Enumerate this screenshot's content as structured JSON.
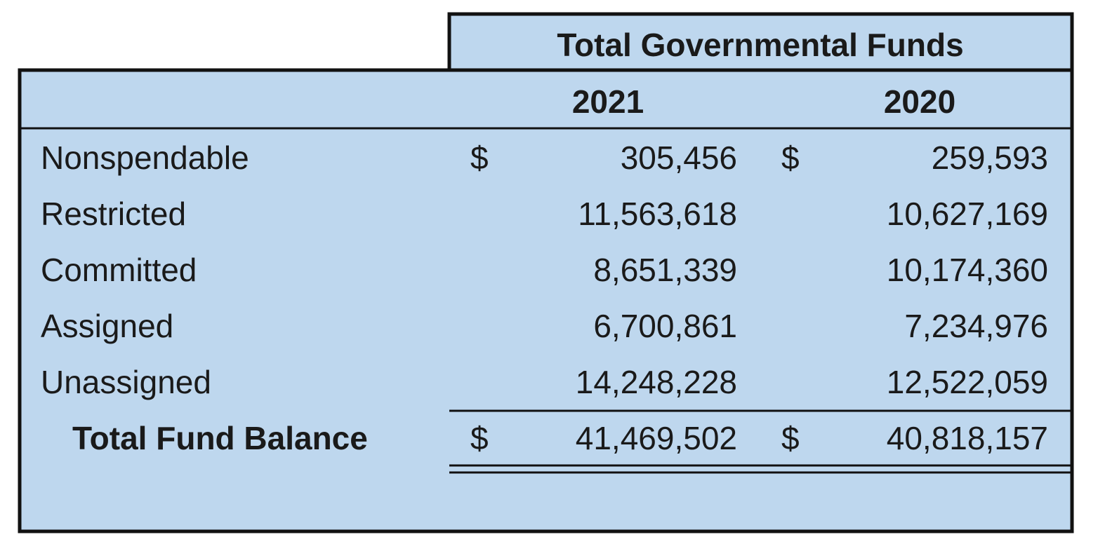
{
  "header": {
    "title": "Total Governmental Funds",
    "columns": [
      "2021",
      "2020"
    ]
  },
  "table": {
    "rows": [
      {
        "label": "Nonspendable",
        "currency": [
          "$",
          "$"
        ],
        "values": [
          "305,456",
          "259,593"
        ]
      },
      {
        "label": "Restricted",
        "values": [
          "11,563,618",
          "10,627,169"
        ]
      },
      {
        "label": "Committed",
        "values": [
          "8,651,339",
          "10,174,360"
        ]
      },
      {
        "label": "Assigned",
        "values": [
          "6,700,861",
          "7,234,976"
        ]
      },
      {
        "label": "Unassigned",
        "values": [
          "14,248,228",
          "12,522,059"
        ]
      }
    ],
    "total": {
      "label": "Total Fund Balance",
      "currency": [
        "$",
        "$"
      ],
      "values": [
        "41,469,502",
        "40,818,157"
      ]
    }
  }
}
